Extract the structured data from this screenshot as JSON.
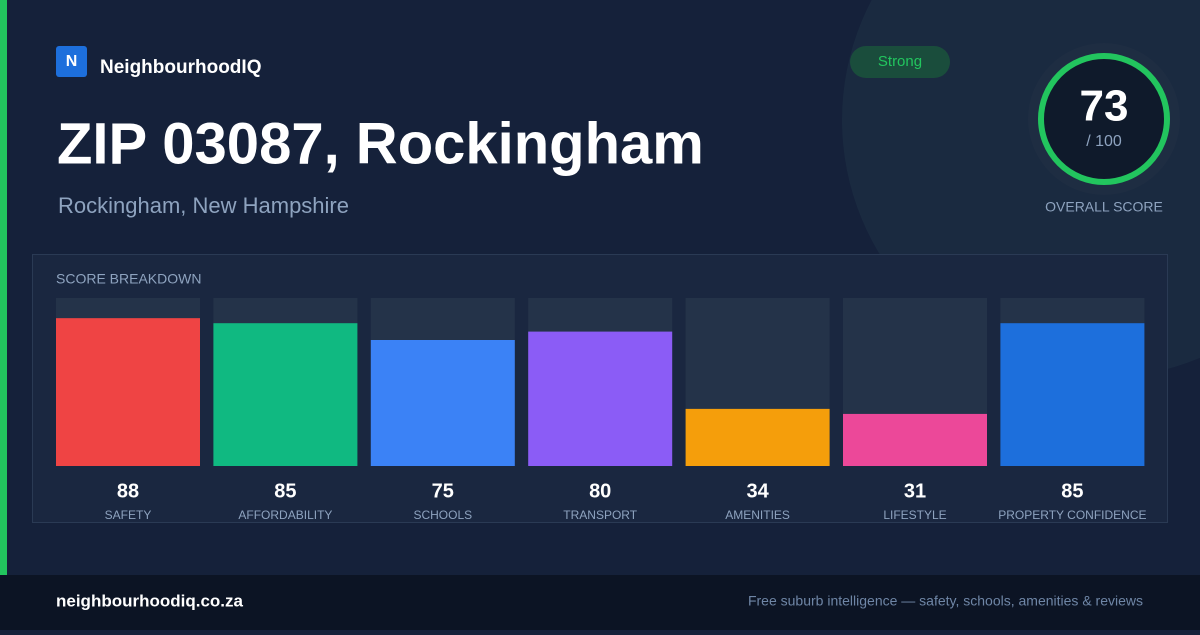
{
  "brand": {
    "logo": "N",
    "name": "NeighbourhoodIQ"
  },
  "badge": "Strong",
  "title": "ZIP 03087, Rockingham",
  "subtitle": "Rockingham, New Hampshire",
  "score": {
    "value": 73,
    "max_label": "/ 100",
    "label": "OVERALL SCORE"
  },
  "chart_data": {
    "type": "bar",
    "title": "SCORE BREAKDOWN",
    "categories": [
      "SAFETY",
      "AFFORDABILITY",
      "SCHOOLS",
      "TRANSPORT",
      "AMENITIES",
      "LIFESTYLE",
      "PROPERTY CONFIDENCE"
    ],
    "values": [
      88,
      85,
      75,
      80,
      34,
      31,
      85
    ],
    "colors": [
      "#ef4444",
      "#10b981",
      "#3b82f6",
      "#8b5cf6",
      "#f59e0b",
      "#ec4899",
      "#1d6fdc"
    ],
    "ylim": [
      0,
      100
    ]
  },
  "footer": {
    "site": "neighbourhoodiq.co.za",
    "tagline": "Free suburb intelligence — safety, schools, amenities & reviews"
  }
}
